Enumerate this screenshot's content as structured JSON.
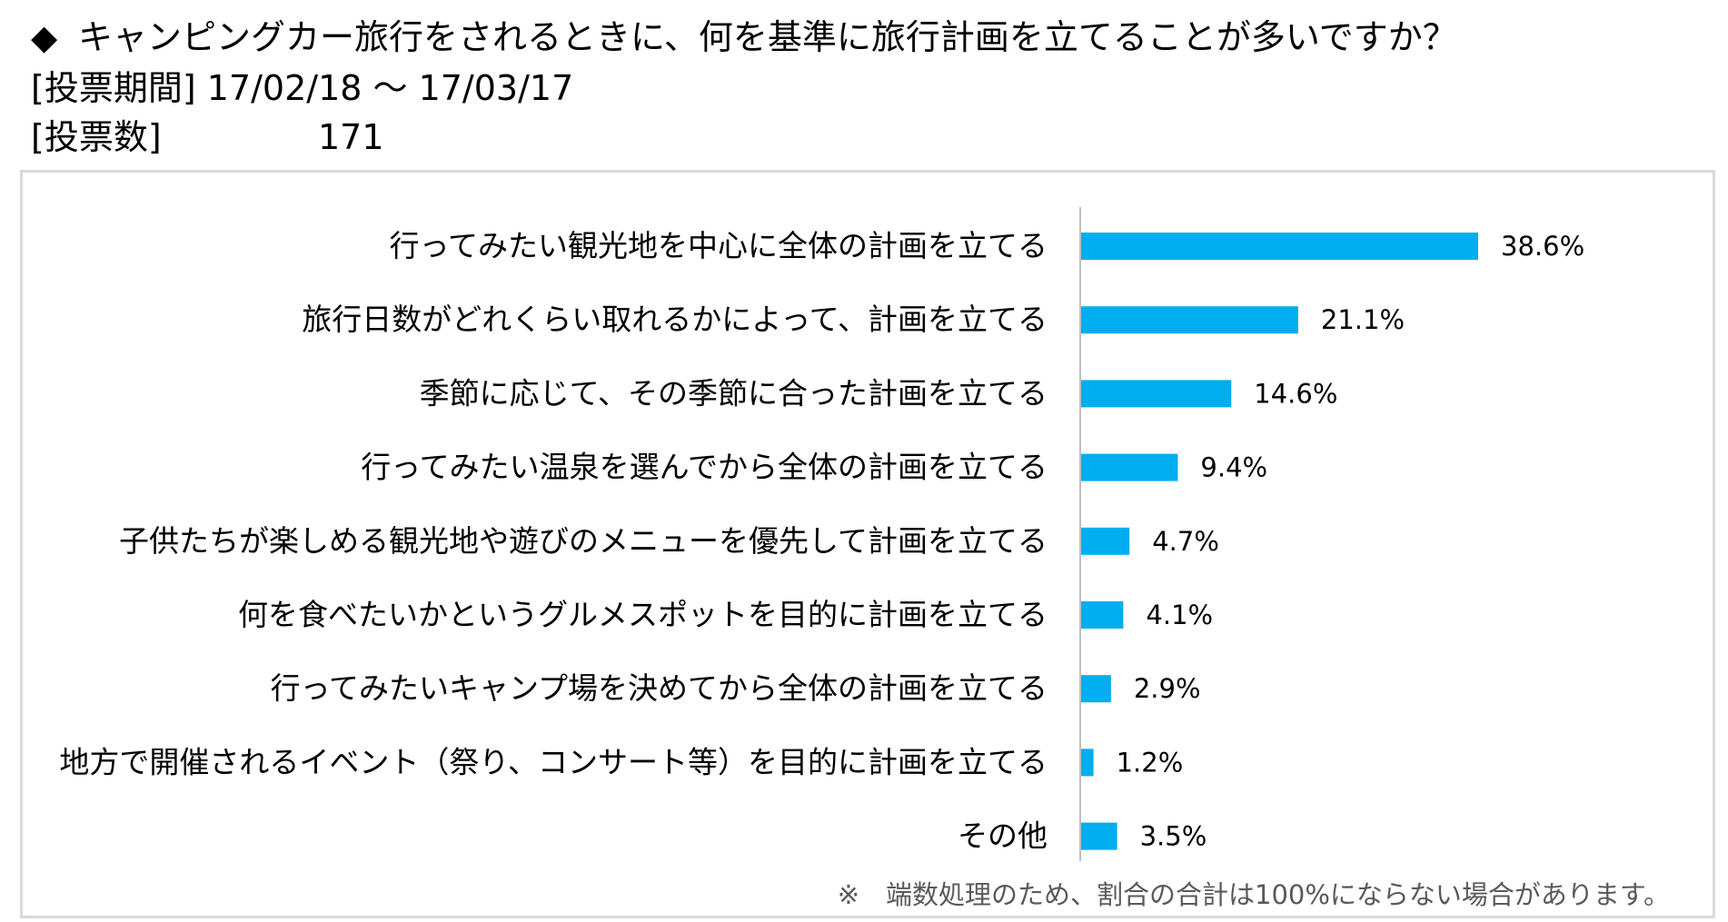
{
  "header": {
    "bullet": "◆",
    "question": "キャンピングカー旅行をされるときに、何を基準に旅行計画を立てることが多いですか？",
    "period_label": "[投票期間]",
    "period_value": "17/02/18 ～ 17/03/17",
    "count_label": "[投票数]",
    "count_value": "171"
  },
  "chart_data": {
    "type": "bar",
    "orientation": "horizontal",
    "categories": [
      "行ってみたい観光地を中心に全体の計画を立てる",
      "旅行日数がどれくらい取れるかによって、計画を立てる",
      "季節に応じて、その季節に合った計画を立てる",
      "行ってみたい温泉を選んでから全体の計画を立てる",
      "子供たちが楽しめる観光地や遊びのメニューを優先して計画を立てる",
      "何を食べたいかというグルメスポットを目的に計画を立てる",
      "行ってみたいキャンプ場を決めてから全体の計画を立てる",
      "地方で開催されるイベント（祭り、コンサート等）を目的に計画を立てる",
      "その他"
    ],
    "values": [
      38.6,
      21.1,
      14.6,
      9.4,
      4.7,
      4.1,
      2.9,
      1.2,
      3.5
    ],
    "value_labels": [
      "38.6%",
      "21.1%",
      "14.6%",
      "9.4%",
      "4.7%",
      "4.1%",
      "2.9%",
      "1.2%",
      "3.5%"
    ],
    "unit": "%",
    "xlim": [
      0,
      50
    ],
    "bar_color": "#00aeef",
    "grid": false,
    "legend": "none"
  },
  "footnote": "※　端数処理のため、割合の合計は100%にならない場合があります。"
}
